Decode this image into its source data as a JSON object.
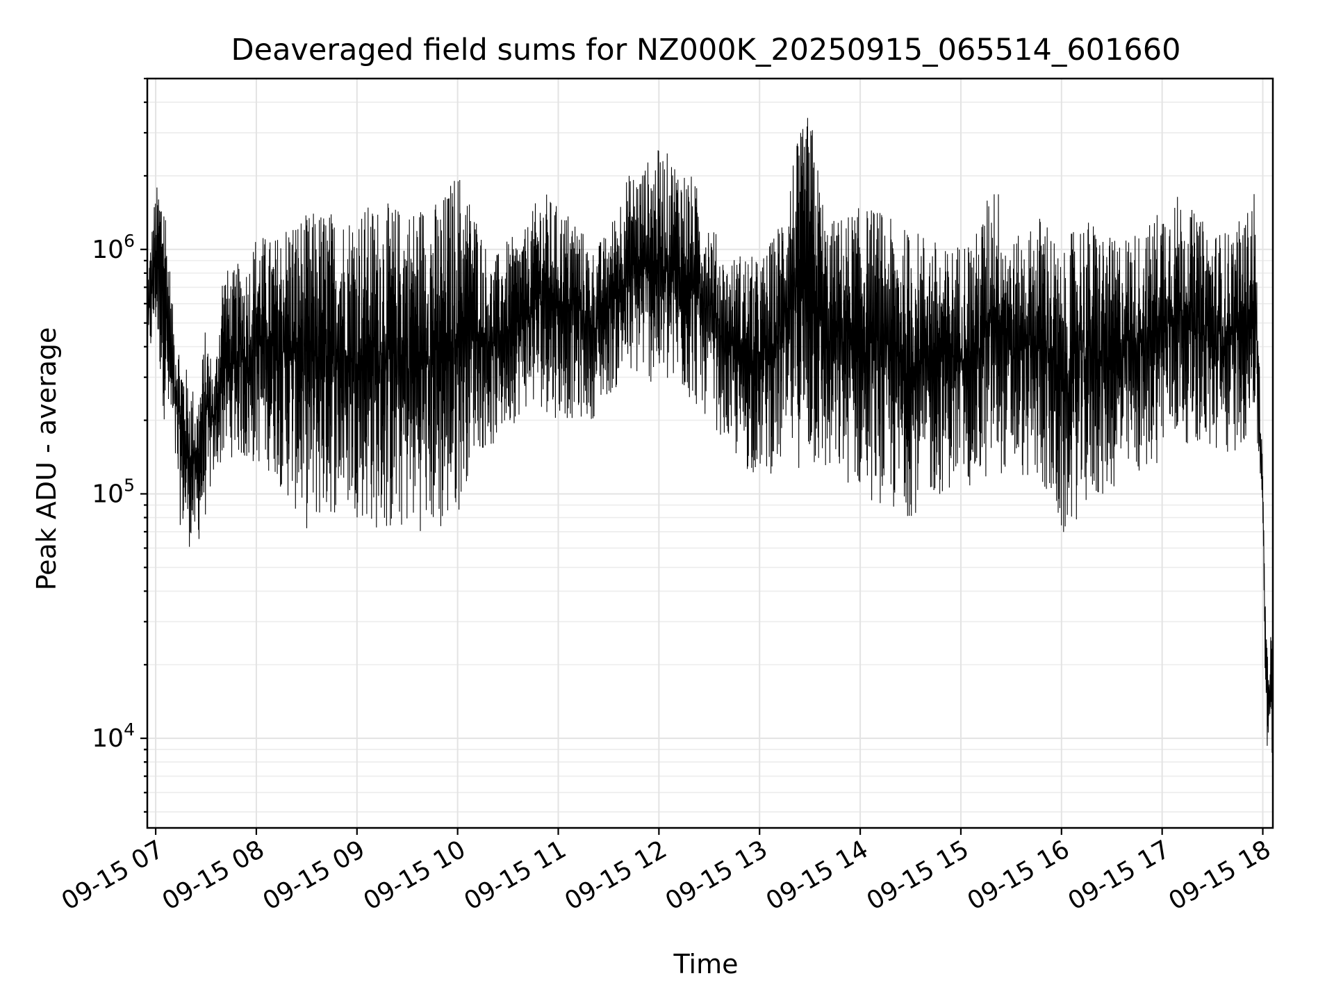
{
  "chart_data": {
    "type": "line",
    "title": "Deaveraged field sums for NZ000K_20250915_065514_601660",
    "xlabel": "Time",
    "ylabel": "Peak ADU - average",
    "yscale": "log",
    "ylim": [
      4300,
      5000000
    ],
    "xlim": [
      "2025-09-15 06:55",
      "2025-09-15 18:06"
    ],
    "grid": true,
    "legend": "none",
    "line_color": "#000000",
    "x_ticks": [
      "09-15 07",
      "09-15 08",
      "09-15 09",
      "09-15 10",
      "09-15 11",
      "09-15 12",
      "09-15 13",
      "09-15 14",
      "09-15 15",
      "09-15 16",
      "09-15 17",
      "09-15 18"
    ],
    "y_ticks": [
      {
        "value": 10000,
        "base": "10",
        "exp": "4"
      },
      {
        "value": 100000,
        "base": "10",
        "exp": "5"
      },
      {
        "value": 1000000,
        "base": "10",
        "exp": "6"
      }
    ],
    "series": [
      {
        "name": "",
        "x": [
          "2025-09-15 06:55",
          "2025-09-15 07:00",
          "2025-09-15 07:05",
          "2025-09-15 07:10",
          "2025-09-15 07:15",
          "2025-09-15 07:20",
          "2025-09-15 07:25",
          "2025-09-15 07:30",
          "2025-09-15 07:35",
          "2025-09-15 07:40",
          "2025-09-15 07:45",
          "2025-09-15 07:50",
          "2025-09-15 07:55",
          "2025-09-15 08:00",
          "2025-09-15 08:10",
          "2025-09-15 08:20",
          "2025-09-15 08:30",
          "2025-09-15 08:40",
          "2025-09-15 08:50",
          "2025-09-15 09:00",
          "2025-09-15 09:10",
          "2025-09-15 09:20",
          "2025-09-15 09:30",
          "2025-09-15 09:40",
          "2025-09-15 09:50",
          "2025-09-15 10:00",
          "2025-09-15 10:10",
          "2025-09-15 10:20",
          "2025-09-15 10:30",
          "2025-09-15 10:40",
          "2025-09-15 10:50",
          "2025-09-15 11:00",
          "2025-09-15 11:10",
          "2025-09-15 11:20",
          "2025-09-15 11:30",
          "2025-09-15 11:40",
          "2025-09-15 11:50",
          "2025-09-15 12:00",
          "2025-09-15 12:10",
          "2025-09-15 12:20",
          "2025-09-15 12:30",
          "2025-09-15 12:40",
          "2025-09-15 12:50",
          "2025-09-15 13:00",
          "2025-09-15 13:10",
          "2025-09-15 13:20",
          "2025-09-15 13:30",
          "2025-09-15 13:40",
          "2025-09-15 13:50",
          "2025-09-15 14:00",
          "2025-09-15 14:10",
          "2025-09-15 14:20",
          "2025-09-15 14:30",
          "2025-09-15 14:40",
          "2025-09-15 14:50",
          "2025-09-15 15:00",
          "2025-09-15 15:10",
          "2025-09-15 15:20",
          "2025-09-15 15:30",
          "2025-09-15 15:40",
          "2025-09-15 15:50",
          "2025-09-15 16:00",
          "2025-09-15 16:10",
          "2025-09-15 16:20",
          "2025-09-15 16:30",
          "2025-09-15 16:40",
          "2025-09-15 16:50",
          "2025-09-15 17:00",
          "2025-09-15 17:10",
          "2025-09-15 17:20",
          "2025-09-15 17:30",
          "2025-09-15 17:40",
          "2025-09-15 17:50",
          "2025-09-15 17:55",
          "2025-09-15 18:00",
          "2025-09-15 18:02",
          "2025-09-15 18:04",
          "2025-09-15 18:06"
        ],
        "high": [
          800000,
          1800000,
          2000000,
          600000,
          400000,
          300000,
          250000,
          500000,
          300000,
          900000,
          800000,
          900000,
          900000,
          1200000,
          1100000,
          1400000,
          1400000,
          1500000,
          1400000,
          1500000,
          1550000,
          1550000,
          1500000,
          1600000,
          1600000,
          2200000,
          1500000,
          900000,
          1100000,
          1200000,
          1800000,
          1500000,
          1400000,
          1000000,
          1200000,
          2000000,
          2200000,
          2600000,
          2400000,
          2000000,
          1400000,
          900000,
          1000000,
          900000,
          1200000,
          2500000,
          3800000,
          1300000,
          1400000,
          1500000,
          1500000,
          1300000,
          1200000,
          1200000,
          1000000,
          1100000,
          1200000,
          2100000,
          1100000,
          1200000,
          1500000,
          900000,
          1400000,
          1300000,
          1100000,
          1200000,
          1200000,
          1600000,
          1700000,
          1400000,
          1200000,
          1200000,
          1400000,
          1800000,
          120000,
          25000,
          30000,
          25000
        ],
        "low": [
          300000,
          450000,
          200000,
          150000,
          70000,
          60000,
          60000,
          80000,
          120000,
          130000,
          140000,
          140000,
          120000,
          130000,
          120000,
          90000,
          70000,
          75000,
          85000,
          80000,
          70000,
          65000,
          70000,
          70000,
          65000,
          80000,
          150000,
          150000,
          180000,
          220000,
          220000,
          200000,
          200000,
          200000,
          250000,
          280000,
          300000,
          260000,
          250000,
          230000,
          200000,
          160000,
          120000,
          120000,
          120000,
          130000,
          120000,
          110000,
          110000,
          100000,
          90000,
          80000,
          80000,
          90000,
          100000,
          110000,
          100000,
          120000,
          120000,
          110000,
          100000,
          60000,
          80000,
          90000,
          100000,
          110000,
          120000,
          140000,
          160000,
          160000,
          140000,
          140000,
          160000,
          200000,
          80000,
          9000,
          7000,
          8000
        ]
      }
    ]
  }
}
